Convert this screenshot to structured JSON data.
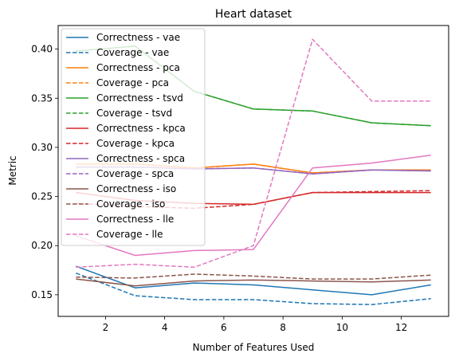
{
  "chart_data": {
    "type": "line",
    "title": "Heart dataset",
    "xlabel": "Number of Features Used",
    "ylabel": "Metric",
    "xlim": [
      0.4,
      13.6
    ],
    "ylim": [
      0.128,
      0.424
    ],
    "xticks": [
      2,
      4,
      6,
      8,
      10,
      12
    ],
    "yticks": [
      0.15,
      0.2,
      0.25,
      0.3,
      0.35,
      0.4
    ],
    "ytick_labels": [
      "0.15",
      "0.20",
      "0.25",
      "0.30",
      "0.35",
      "0.40"
    ],
    "grid": false,
    "legend_position": "upper-left",
    "x": [
      1,
      3,
      5,
      7,
      9,
      11,
      13
    ],
    "series": [
      {
        "name": "Correctness - vae",
        "color": "#1f77b4",
        "dash": "solid",
        "values": [
          0.179,
          0.157,
          0.162,
          0.16,
          0.155,
          0.15,
          0.16
        ]
      },
      {
        "name": "Coverage - vae",
        "color": "#1f77b4",
        "dash": "dashed",
        "values": [
          0.172,
          0.149,
          0.145,
          0.145,
          0.141,
          0.14,
          0.146
        ]
      },
      {
        "name": "Correctness - pca",
        "color": "#ff7f0e",
        "dash": "solid",
        "values": [
          0.283,
          0.283,
          0.279,
          0.283,
          0.274,
          0.277,
          0.277
        ]
      },
      {
        "name": "Coverage - pca",
        "color": "#ff7f0e",
        "dash": "dashed",
        "values": [
          0.283,
          0.283,
          0.279,
          0.283,
          0.274,
          0.277,
          0.277
        ]
      },
      {
        "name": "Correctness - tsvd",
        "color": "#2ca02c",
        "dash": "solid",
        "values": [
          0.398,
          0.403,
          0.357,
          0.339,
          0.337,
          0.325,
          0.322
        ]
      },
      {
        "name": "Coverage - tsvd",
        "color": "#2ca02c",
        "dash": "dashed",
        "values": [
          0.398,
          0.403,
          0.357,
          0.339,
          0.337,
          0.325,
          0.322
        ]
      },
      {
        "name": "Correctness - kpca",
        "color": "#d62728",
        "dash": "solid",
        "values": [
          0.254,
          0.246,
          0.243,
          0.242,
          0.254,
          0.254,
          0.254
        ]
      },
      {
        "name": "Coverage - kpca",
        "color": "#d62728",
        "dash": "dashed",
        "values": [
          0.243,
          0.24,
          0.238,
          0.242,
          0.254,
          0.255,
          0.256
        ]
      },
      {
        "name": "Correctness - spca",
        "color": "#9467bd",
        "dash": "solid",
        "values": [
          0.28,
          0.28,
          0.278,
          0.279,
          0.273,
          0.277,
          0.276
        ]
      },
      {
        "name": "Coverage - spca",
        "color": "#9467bd",
        "dash": "dashed",
        "values": [
          0.28,
          0.28,
          0.278,
          0.279,
          0.273,
          0.277,
          0.276
        ]
      },
      {
        "name": "Correctness - iso",
        "color": "#8c564b",
        "dash": "solid",
        "values": [
          0.166,
          0.159,
          0.164,
          0.165,
          0.164,
          0.163,
          0.165
        ]
      },
      {
        "name": "Coverage - iso",
        "color": "#8c564b",
        "dash": "dashed",
        "values": [
          0.168,
          0.167,
          0.171,
          0.169,
          0.166,
          0.166,
          0.17
        ]
      },
      {
        "name": "Correctness - lle",
        "color": "#e377c2",
        "dash": "solid",
        "values": [
          0.21,
          0.19,
          0.195,
          0.196,
          0.279,
          0.284,
          0.292
        ]
      },
      {
        "name": "Coverage - lle",
        "color": "#e377c2",
        "dash": "dashed",
        "values": [
          0.178,
          0.181,
          0.178,
          0.2,
          0.41,
          0.347,
          0.347
        ]
      }
    ]
  }
}
